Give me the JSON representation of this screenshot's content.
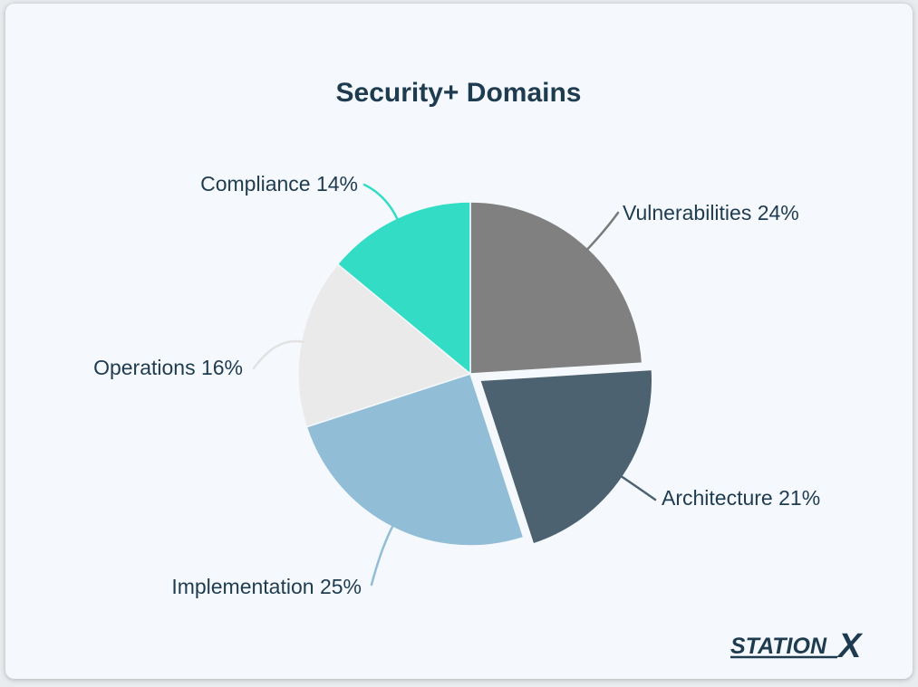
{
  "chart_data": {
    "type": "pie",
    "title": "Security+ Domains",
    "slices": [
      {
        "label": "Vulnerabilities 24%",
        "name": "Vulnerabilities",
        "value": 24,
        "color": "#808080",
        "exploded": false
      },
      {
        "label": "Architecture 21%",
        "name": "Architecture",
        "value": 21,
        "color": "#4d6270",
        "exploded": true
      },
      {
        "label": "Implementation 25%",
        "name": "Implementation",
        "value": 25,
        "color": "#91bdd6",
        "exploded": false
      },
      {
        "label": "Operations 16%",
        "name": "Operations",
        "value": 16,
        "color": "#eaeaea",
        "exploded": false
      },
      {
        "label": "Compliance 14%",
        "name": "Compliance",
        "value": 14,
        "color": "#33dcc4",
        "exploded": false
      }
    ],
    "leader_colors": [
      "#7a7a7a",
      "#4d6270",
      "#91bdd6",
      "#e2e2e2",
      "#33dcc4"
    ],
    "start": "12 o'clock",
    "direction": "clockwise"
  },
  "logo": {
    "text_main": "STATION",
    "text_x": "X",
    "color": "#1e3b4f"
  }
}
